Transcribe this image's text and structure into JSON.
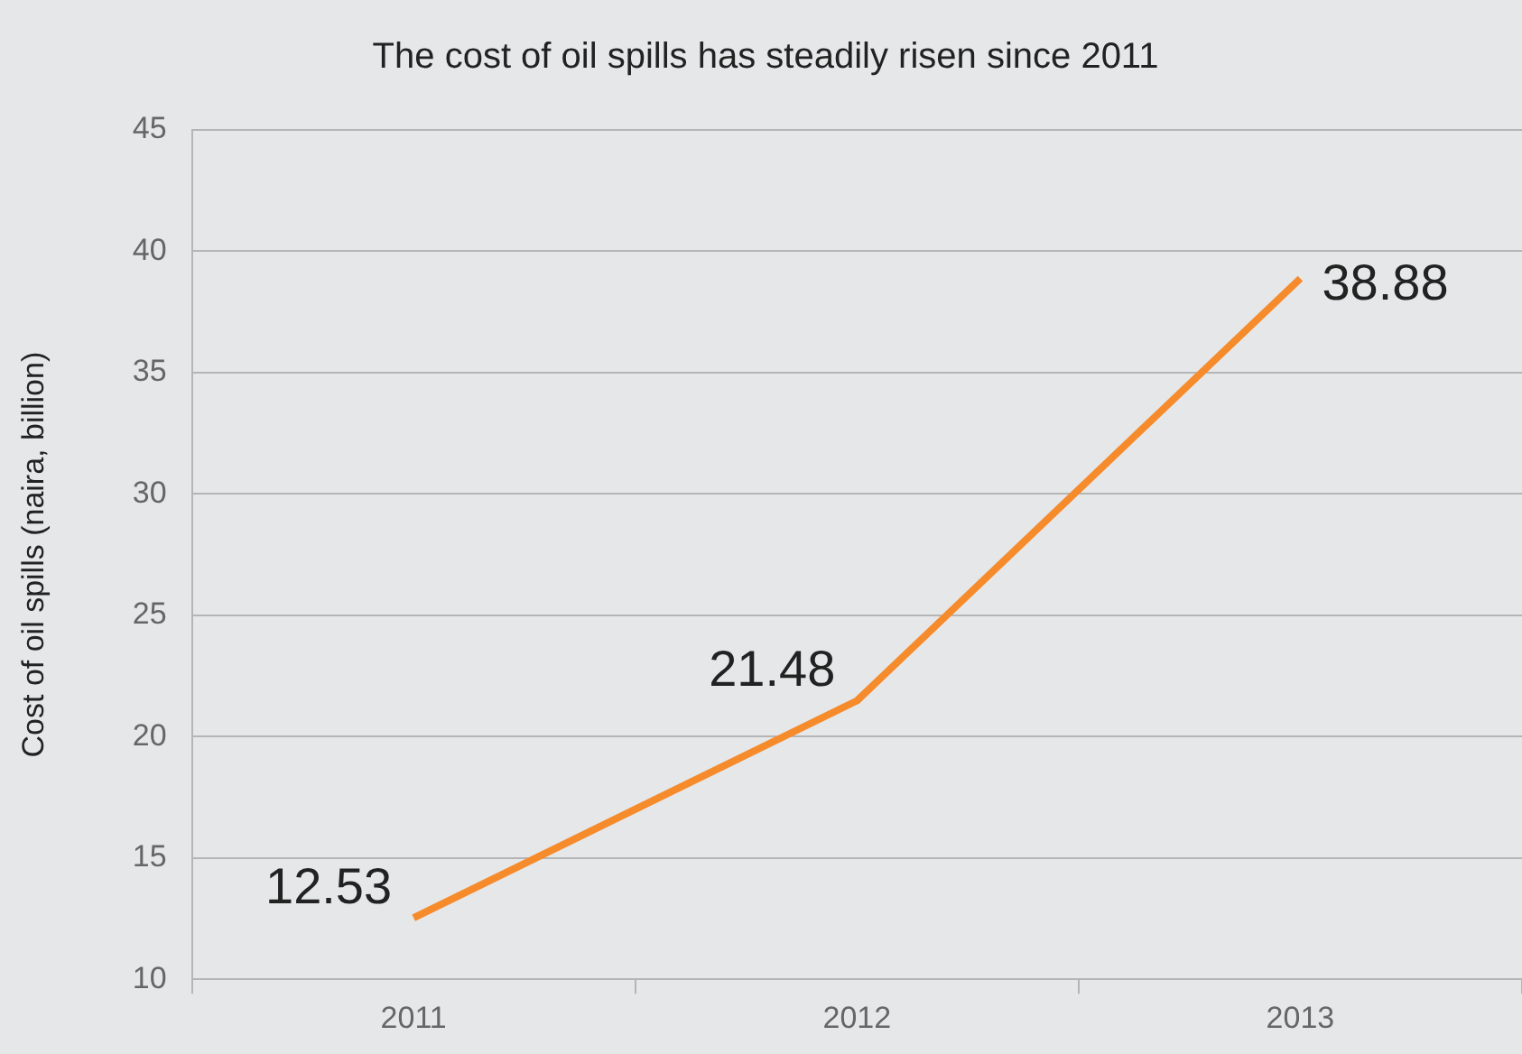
{
  "chart_data": {
    "type": "line",
    "title": "The cost of oil spills has steadily risen since 2011",
    "ylabel": "Cost of oil spills (naira, billion)",
    "categories": [
      "2011",
      "2012",
      "2013"
    ],
    "series": [
      {
        "color": "#f68b2c",
        "values": [
          12.53,
          21.48,
          38.88
        ]
      }
    ],
    "ylim": [
      10,
      45
    ],
    "yticks": [
      10,
      15,
      20,
      25,
      30,
      35,
      40,
      45
    ],
    "grid": "y",
    "legend": false,
    "marker": "none",
    "line_style": "solid",
    "data_labels": true
  }
}
